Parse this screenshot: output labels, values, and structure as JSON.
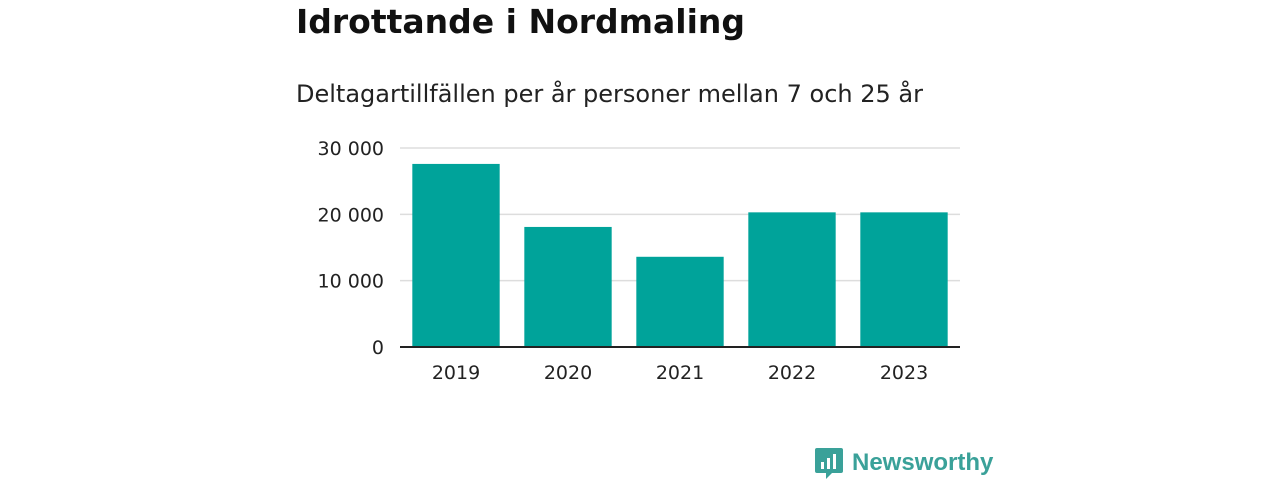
{
  "chart_data": {
    "type": "bar",
    "title": "Idrottande i Nordmaling",
    "subtitle": "Deltagartillfällen per år personer mellan 7 och 25 år",
    "categories": [
      "2019",
      "2020",
      "2021",
      "2022",
      "2023"
    ],
    "values": [
      27600,
      18100,
      13600,
      20300,
      20300
    ],
    "ylim": [
      0,
      30000
    ],
    "yticks": [
      0,
      10000,
      20000,
      30000
    ],
    "ytick_labels": [
      "0",
      "10 000",
      "20 000",
      "30 000"
    ],
    "xlabel": "",
    "ylabel": "",
    "grid": true,
    "bar_color": "#00a39a",
    "grid_color": "#dddddd",
    "axis_color": "#222222"
  },
  "brand": {
    "name": "Newsworthy",
    "color": "#3aa199",
    "icon": "newsworthy-logo-icon"
  }
}
